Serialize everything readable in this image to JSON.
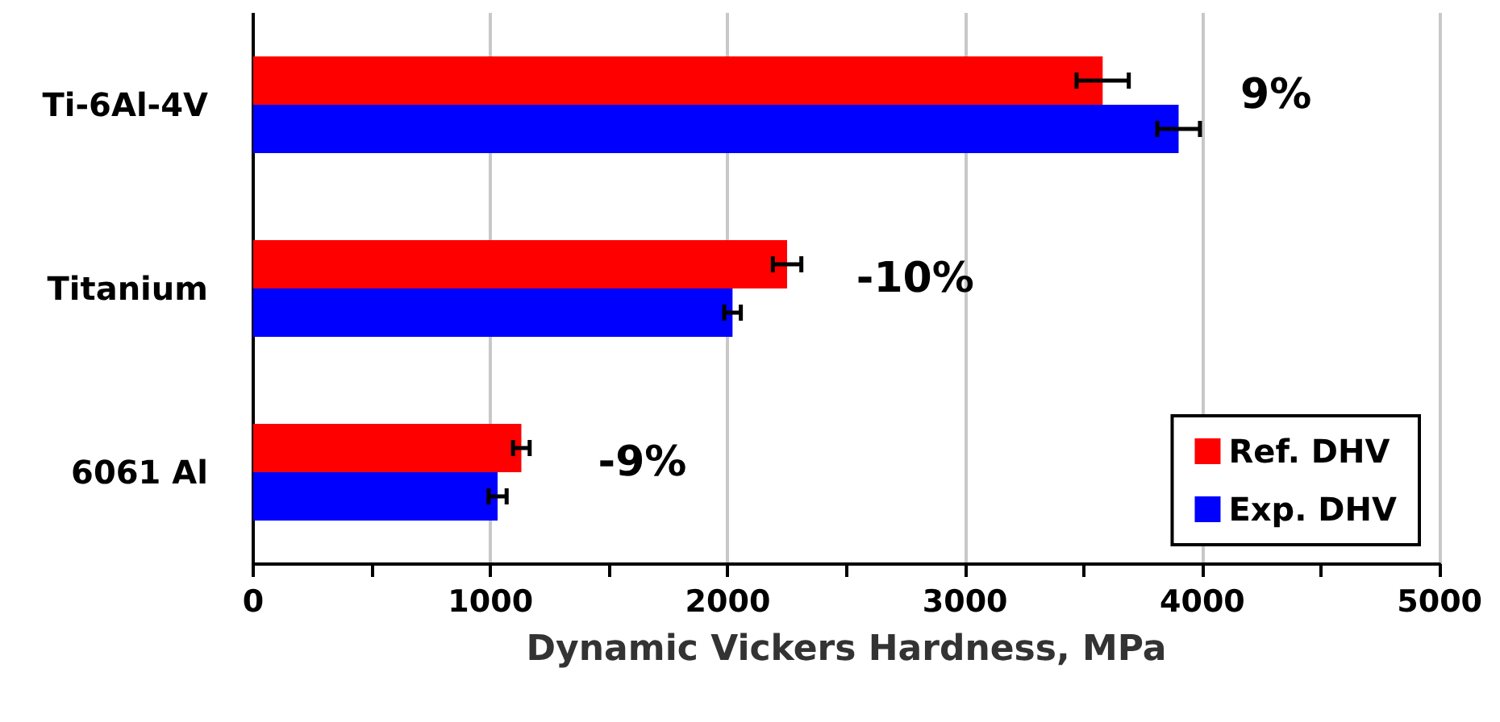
{
  "chart_data": {
    "type": "bar",
    "orientation": "horizontal",
    "xlabel": "Dynamic Vickers Hardness, MPa",
    "categories": [
      "Ti-6Al-4V",
      "Titanium",
      "6061 Al"
    ],
    "series": [
      {
        "name": "Ref. DHV",
        "color": "#ff0000",
        "values": [
          3580,
          2250,
          1130
        ],
        "errors": [
          110,
          60,
          35
        ]
      },
      {
        "name": "Exp. DHV",
        "color": "#0000ff",
        "values": [
          3900,
          2020,
          1030
        ],
        "errors": [
          90,
          35,
          38
        ]
      }
    ],
    "xlim": [
      0,
      5000
    ],
    "xticks": [
      0,
      {
        "value": 500,
        "label": null
      },
      1000,
      {
        "value": 1500,
        "label": null
      },
      2000,
      {
        "value": 2500,
        "label": null
      },
      3000,
      {
        "value": 3500,
        "label": null
      },
      4000,
      {
        "value": 4500,
        "label": null
      },
      5000
    ],
    "grid": "x",
    "legend": "bottom right",
    "annotations": [
      "9%",
      "-10%",
      "-9%"
    ]
  }
}
